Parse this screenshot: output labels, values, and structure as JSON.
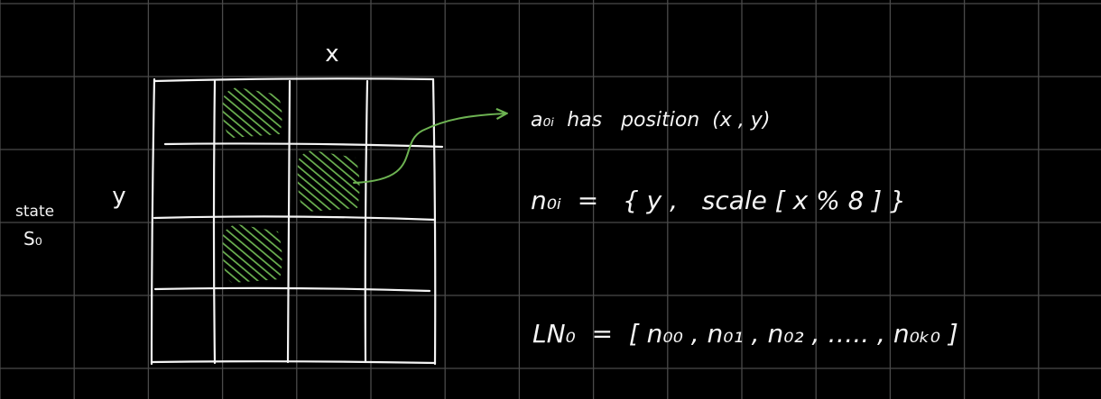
{
  "colors": {
    "background": "#000000",
    "grid_line": "#4a4a4a",
    "ink": "#f4f4f4",
    "highlight": "#6db352"
  },
  "state_label": {
    "line1": "state",
    "line2": "S₀"
  },
  "axis": {
    "x": "x",
    "y": "y"
  },
  "matrix": {
    "rows": 4,
    "cols": 4,
    "highlighted_cells": [
      {
        "row": 0,
        "col": 1
      },
      {
        "row": 1,
        "col": 2
      },
      {
        "row": 2,
        "col": 1
      }
    ]
  },
  "equations": {
    "position": "a₀ᵢ  has   position  (x , y)",
    "note": "n₀ᵢ  =   { y ,   scale [ x % 8 ] }",
    "list": "LN₀  =  [ n₀₀ , n₀₁ , n₀₂ , ….. , n₀ₖ₀ ]"
  }
}
